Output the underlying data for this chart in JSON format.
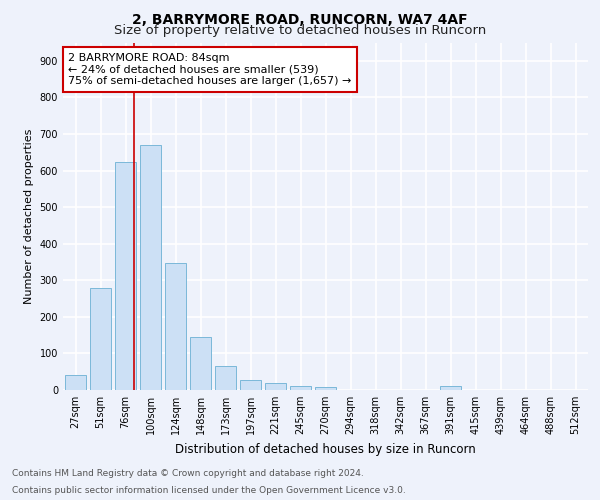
{
  "title1": "2, BARRYMORE ROAD, RUNCORN, WA7 4AF",
  "title2": "Size of property relative to detached houses in Runcorn",
  "xlabel": "Distribution of detached houses by size in Runcorn",
  "ylabel": "Number of detached properties",
  "bar_labels": [
    "27sqm",
    "51sqm",
    "76sqm",
    "100sqm",
    "124sqm",
    "148sqm",
    "173sqm",
    "197sqm",
    "221sqm",
    "245sqm",
    "270sqm",
    "294sqm",
    "318sqm",
    "342sqm",
    "367sqm",
    "391sqm",
    "415sqm",
    "439sqm",
    "464sqm",
    "488sqm",
    "512sqm"
  ],
  "bar_values": [
    42,
    278,
    622,
    670,
    348,
    145,
    65,
    28,
    18,
    12,
    8,
    0,
    0,
    0,
    0,
    10,
    0,
    0,
    0,
    0,
    0
  ],
  "bar_color": "#cce0f5",
  "bar_edge_color": "#7ab8d9",
  "vline_x": 2.33,
  "vline_color": "#cc0000",
  "annotation_text": "2 BARRYMORE ROAD: 84sqm\n← 24% of detached houses are smaller (539)\n75% of semi-detached houses are larger (1,657) →",
  "annotation_box_color": "#ffffff",
  "annotation_box_edge": "#cc0000",
  "ylim": [
    0,
    950
  ],
  "yticks": [
    0,
    100,
    200,
    300,
    400,
    500,
    600,
    700,
    800,
    900
  ],
  "footer_line1": "Contains HM Land Registry data © Crown copyright and database right 2024.",
  "footer_line2": "Contains public sector information licensed under the Open Government Licence v3.0.",
  "background_color": "#eef2fb",
  "grid_color": "#ffffff",
  "title1_fontsize": 10,
  "title2_fontsize": 9.5,
  "xlabel_fontsize": 8.5,
  "ylabel_fontsize": 8,
  "tick_fontsize": 7,
  "footer_fontsize": 6.5,
  "annot_fontsize": 8
}
